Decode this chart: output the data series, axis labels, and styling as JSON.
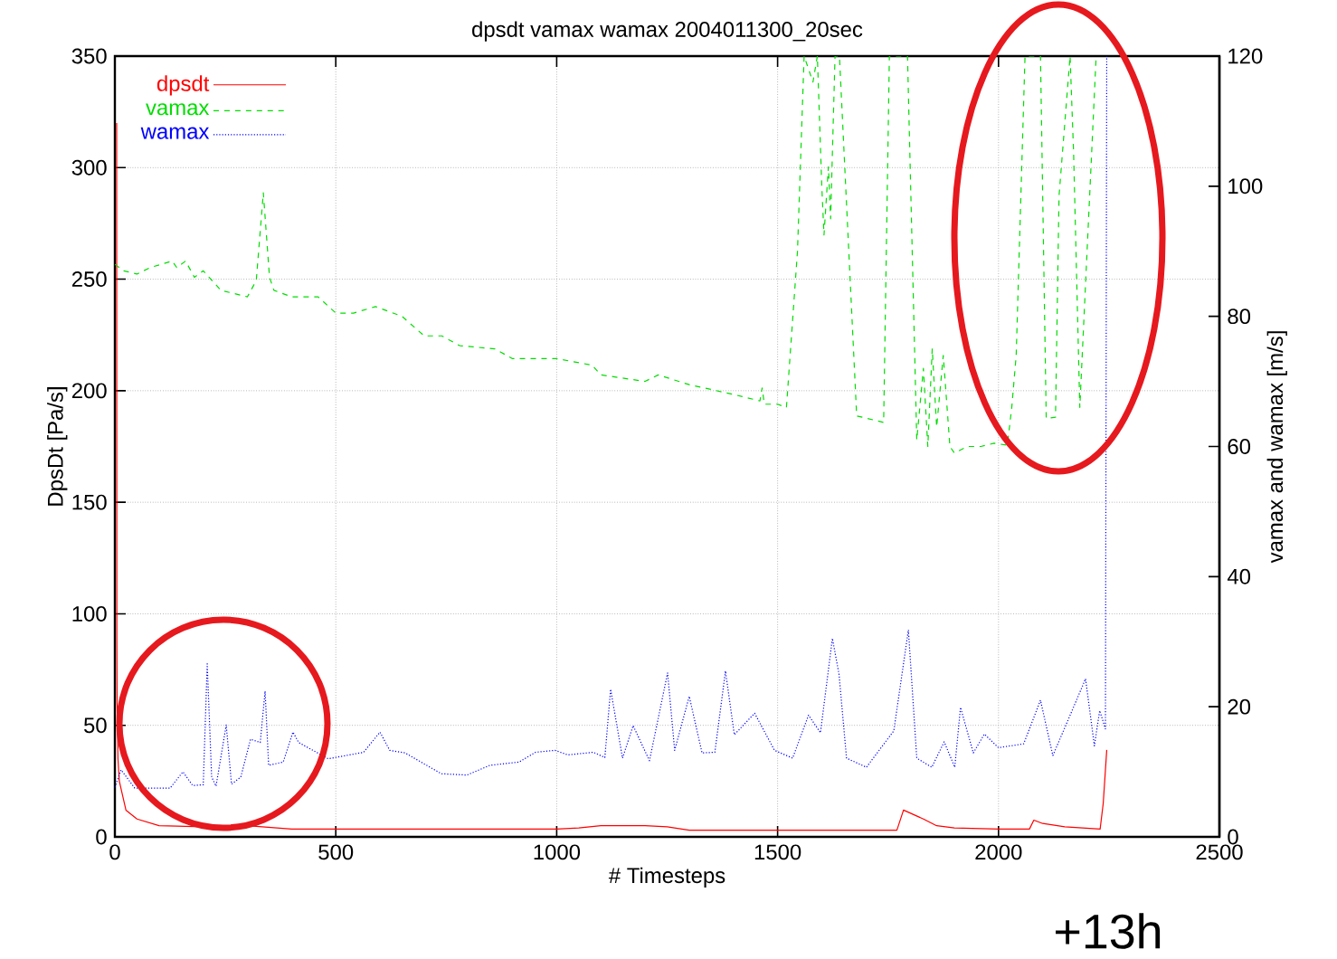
{
  "chart_data": {
    "type": "line",
    "title": "dpsdt vamax wamax 2004011300_20sec",
    "xlabel": "# Timesteps",
    "ylabel": "DpsDt [Pa/s]",
    "y2label": "vamax and wamax [m/s]",
    "xlim": [
      0,
      2500
    ],
    "xticks": [
      0,
      500,
      1000,
      1500,
      2000,
      2500
    ],
    "ylim": [
      0,
      350
    ],
    "yticks": [
      0,
      50,
      100,
      150,
      200,
      250,
      300,
      350
    ],
    "y2lim": [
      0,
      120
    ],
    "y2ticks": [
      0,
      20,
      40,
      60,
      80,
      100,
      120
    ],
    "grid": true,
    "legend": "top left",
    "annotations": [
      "+13h"
    ],
    "series": [
      {
        "name": "dpsdt",
        "color": "#ff0000",
        "line_style": "solid",
        "x": [
          4,
          4.5,
          5,
          7,
          10,
          25,
          50,
          100,
          200,
          300,
          400,
          700,
          1000,
          1050,
          1100,
          1200,
          1250,
          1300,
          1500,
          1770,
          1785,
          1830,
          1860,
          1900,
          2000,
          2070,
          2080,
          2100,
          2150,
          2230,
          2237,
          2245
        ],
        "values": [
          320,
          88,
          60,
          35,
          25,
          12,
          8,
          5,
          4.5,
          5,
          3.5,
          3.5,
          3.5,
          4,
          5,
          5,
          4.5,
          3,
          3,
          3,
          12,
          8,
          5,
          4,
          3.5,
          3.5,
          7.5,
          6,
          4.5,
          3.5,
          15,
          39
        ]
      },
      {
        "name": "vamax",
        "color": "#00dd00",
        "line_style": "dashed",
        "axis": "y2",
        "x": [
          0,
          20,
          50,
          80,
          130,
          140,
          160,
          180,
          200,
          240,
          300,
          320,
          336,
          350,
          360,
          400,
          460,
          500,
          540,
          590,
          650,
          700,
          740,
          780,
          860,
          900,
          1000,
          1080,
          1100,
          1200,
          1230,
          1300,
          1400,
          1460,
          1465,
          1470,
          1500,
          1520,
          1545,
          1560,
          1580,
          1590,
          1600,
          1605,
          1615,
          1620,
          1630,
          1640,
          1679,
          1740,
          1753,
          1794,
          1815,
          1830,
          1840,
          1850,
          1860,
          1875,
          1890,
          1900,
          1930,
          1960,
          1990,
          2020,
          2030,
          2040,
          2060,
          2095,
          2108,
          2129,
          2137,
          2162,
          2170,
          2184,
          2221
        ],
        "values": [
          88,
          87,
          86.5,
          87.5,
          88.5,
          87.5,
          88.5,
          86,
          87,
          84,
          83,
          85.5,
          99,
          86,
          84,
          83,
          83,
          80.5,
          80.5,
          81.5,
          80,
          77,
          77,
          75.5,
          75,
          73.5,
          73.5,
          72.5,
          71,
          70,
          71,
          69.5,
          68,
          67,
          69,
          66.5,
          66.5,
          66,
          90,
          120,
          116,
          120,
          100,
          92.5,
          103,
          95,
          120,
          120,
          64.7,
          63.7,
          120,
          120,
          61,
          72,
          60,
          75,
          63,
          74,
          60,
          59,
          60,
          60,
          60.5,
          60.2,
          66,
          74,
          120,
          120,
          64.3,
          64.5,
          98.5,
          120,
          105,
          66,
          120
        ]
      },
      {
        "name": "wamax",
        "color": "#0000ff",
        "line_style": "dotted",
        "axis": "y2",
        "x": [
          0,
          14,
          45,
          125,
          154,
          176,
          200,
          209,
          219,
          229,
          252,
          264,
          285,
          307,
          329,
          340,
          348,
          381,
          403,
          416,
          483,
          563,
          600,
          622,
          657,
          739,
          797,
          849,
          915,
          952,
          996,
          1025,
          1083,
          1109,
          1122,
          1149,
          1173,
          1210,
          1251,
          1267,
          1300,
          1329,
          1358,
          1382,
          1402,
          1448,
          1493,
          1534,
          1570,
          1597,
          1624,
          1639,
          1656,
          1701,
          1763,
          1796,
          1815,
          1849,
          1877,
          1901,
          1914,
          1943,
          1968,
          2000,
          2057,
          2095,
          2123,
          2164,
          2197,
          2217,
          2229,
          2242,
          2245
        ],
        "values": [
          7.6,
          10.3,
          7.5,
          7.5,
          10,
          7.9,
          8,
          26.6,
          9.2,
          7.8,
          17.2,
          8.1,
          9.2,
          15,
          14.5,
          22.4,
          11,
          11.5,
          16.1,
          14.5,
          12,
          13,
          16.1,
          13.3,
          12.9,
          9.7,
          9.5,
          11,
          11.5,
          13,
          13.3,
          12.6,
          13,
          12.2,
          22.7,
          12.1,
          17.1,
          11.7,
          25.2,
          13.3,
          21.6,
          12.9,
          13,
          25.5,
          15.7,
          19,
          13.3,
          12.1,
          18.7,
          16,
          30.5,
          25,
          12.1,
          10.7,
          16.3,
          31.8,
          12.1,
          10.7,
          14.6,
          10.7,
          19.9,
          12.9,
          15.8,
          13.7,
          14.3,
          21,
          12.5,
          19,
          24.3,
          14,
          19.4,
          16.6,
          120
        ]
      }
    ]
  }
}
